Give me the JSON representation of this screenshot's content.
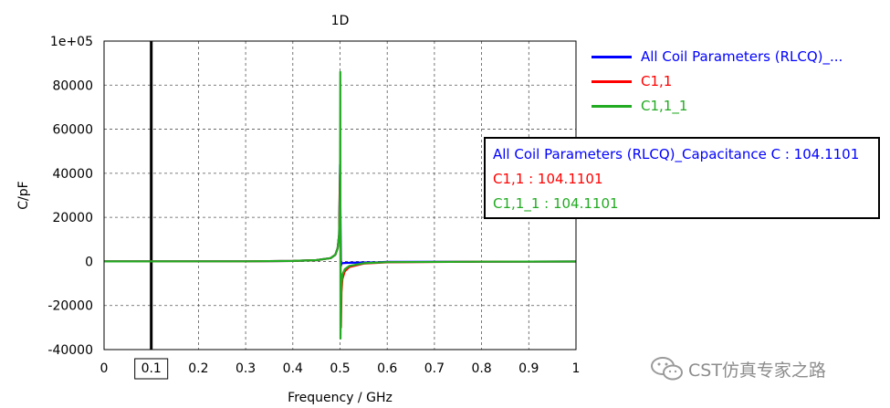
{
  "chart_data": {
    "type": "line",
    "title": "1D",
    "xlabel": "Frequency / GHz",
    "ylabel": "C/pF",
    "xlim": [
      0,
      1
    ],
    "ylim": [
      -40000,
      100000
    ],
    "x_ticks": [
      "0",
      "0.1",
      "0.2",
      "0.3",
      "0.4",
      "0.5",
      "0.6",
      "0.7",
      "0.8",
      "0.9",
      "1"
    ],
    "y_ticks": [
      "1e+05",
      "80000",
      "60000",
      "40000",
      "20000",
      "0",
      "-20000",
      "-40000"
    ],
    "y_tick_values": [
      100000,
      80000,
      60000,
      40000,
      20000,
      0,
      -20000,
      -40000
    ],
    "grid": true,
    "marker_x": 0.1,
    "marker_label": "0.1",
    "legend_position": "right",
    "series": [
      {
        "name": "All Coil Parameters (RLCQ)_...",
        "color": "#0000ff",
        "x": [
          0,
          0.3,
          0.4,
          0.45,
          0.48,
          0.49,
          0.495,
          0.498,
          0.5,
          0.502,
          0.503,
          0.505,
          0.51,
          0.52,
          0.55,
          0.58,
          0.6,
          0.8,
          1
        ],
        "y": [
          0,
          50,
          200,
          600,
          1500,
          3000,
          6000,
          12000,
          44000,
          -2000,
          -1000,
          -800,
          -700,
          -600,
          -500,
          -400,
          -200,
          -100,
          -50
        ]
      },
      {
        "name": "C1,1",
        "color": "#ff0000",
        "x": [
          0,
          0.3,
          0.4,
          0.45,
          0.48,
          0.49,
          0.495,
          0.498,
          0.5,
          0.502,
          0.503,
          0.505,
          0.51,
          0.52,
          0.55,
          0.6,
          0.8,
          1
        ],
        "y": [
          0,
          50,
          200,
          600,
          1500,
          3000,
          6000,
          12000,
          40000,
          -30000,
          -14000,
          -8000,
          -4500,
          -2500,
          -1000,
          -400,
          -100,
          -50
        ]
      },
      {
        "name": "C1,1_1",
        "color": "#22aa22",
        "x": [
          0,
          0.3,
          0.4,
          0.45,
          0.48,
          0.49,
          0.495,
          0.498,
          0.5,
          0.5005,
          0.501,
          0.5015,
          0.503,
          0.505,
          0.51,
          0.52,
          0.55,
          0.6,
          0.8,
          1
        ],
        "y": [
          0,
          50,
          200,
          600,
          1500,
          3000,
          6000,
          12000,
          30000,
          86000,
          -35000,
          -20000,
          -10000,
          -6000,
          -3500,
          -2000,
          -800,
          -300,
          -100,
          -50
        ]
      }
    ]
  },
  "tooltip": {
    "line1": "All Coil Parameters (RLCQ)_Capacitance C : 104.1101",
    "line2": "C1,1 : 104.1101",
    "line3": "C1,1_1 : 104.1101"
  },
  "watermark": {
    "text": "CST仿真专家之路",
    "icon": "wechat-icon"
  }
}
